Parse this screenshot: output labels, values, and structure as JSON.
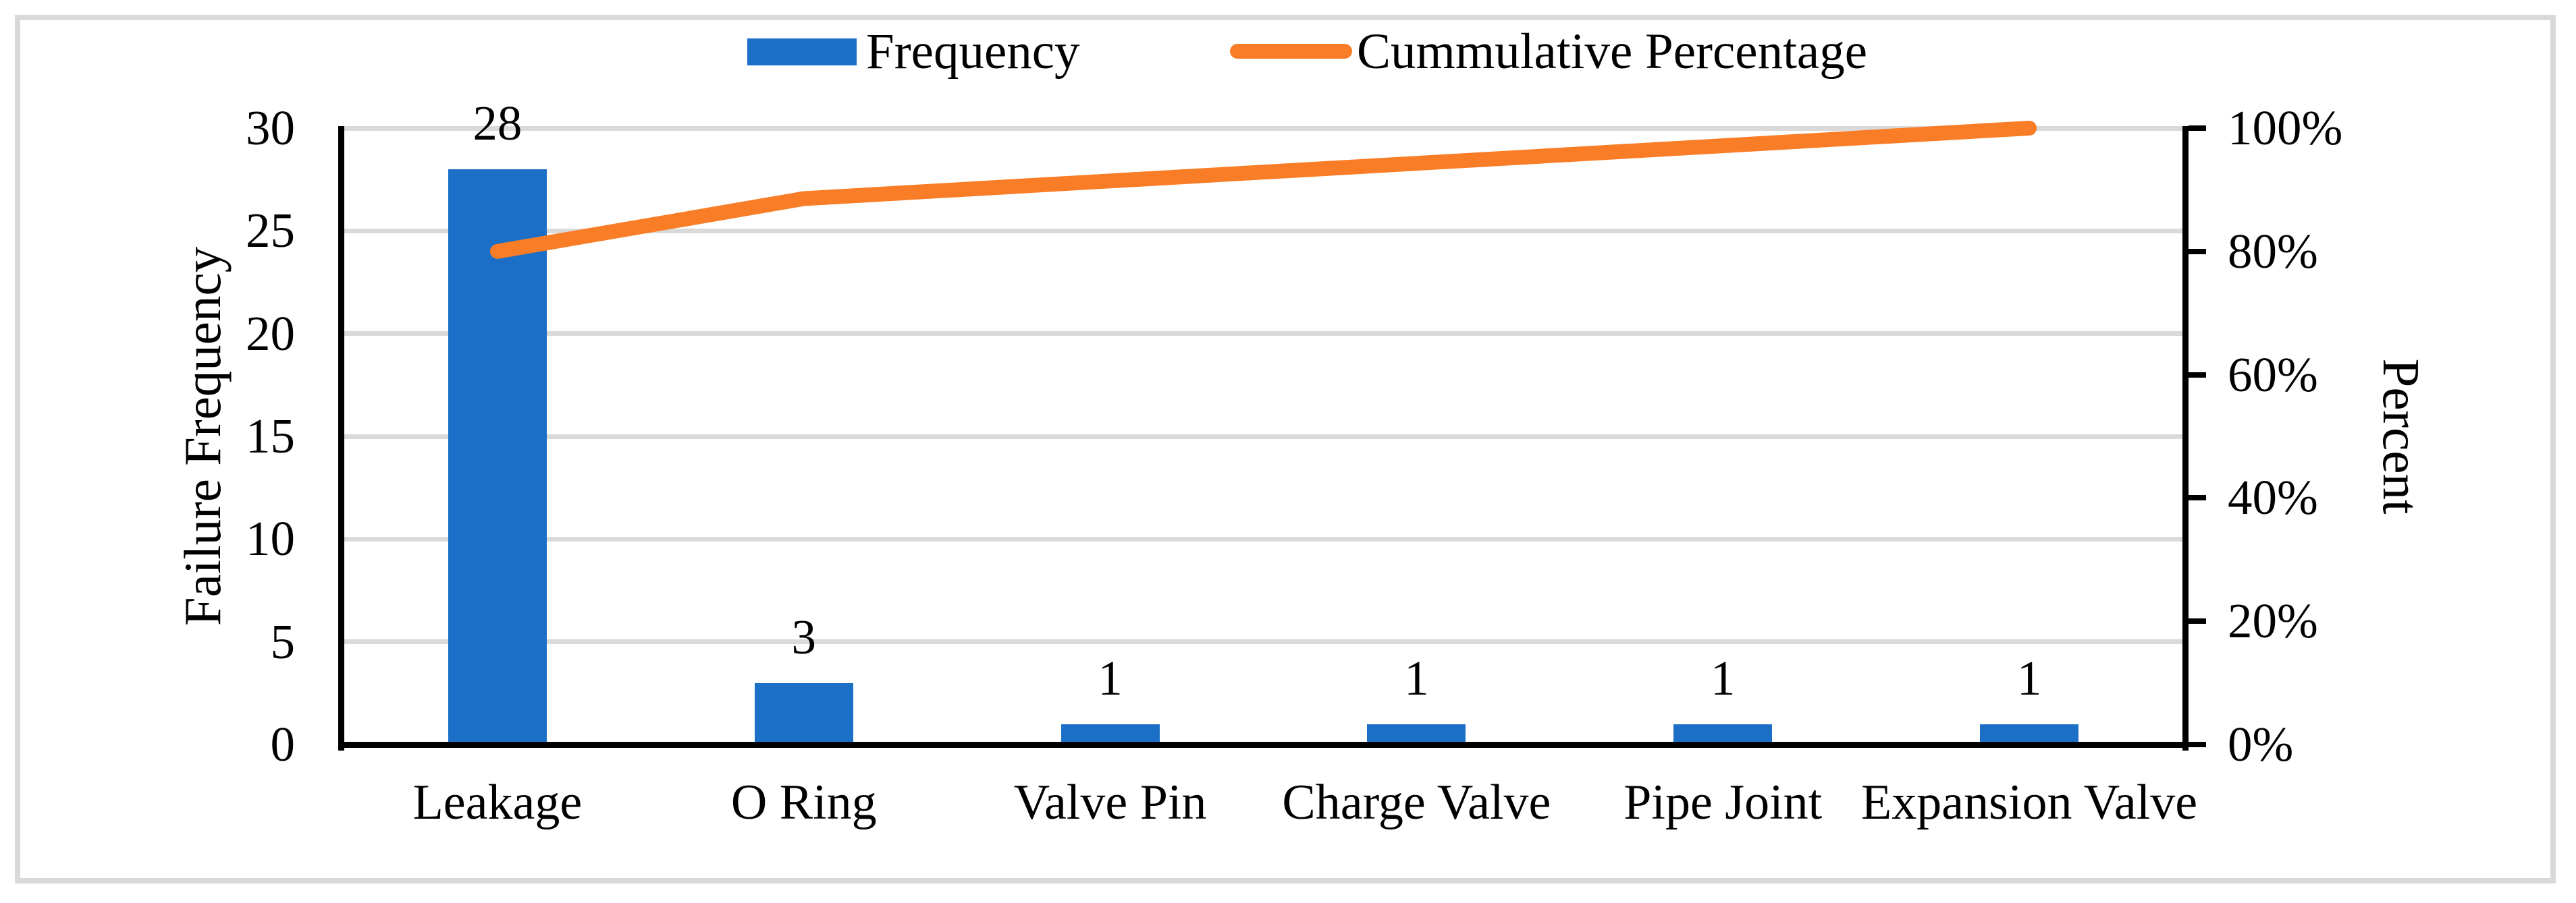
{
  "figure": {
    "description": "Pareto chart of failure causes",
    "colors": {
      "bar_blue": "#1B6FC7",
      "line_orange": "#F97D27",
      "gridline_gray": "#DADADA",
      "frame_gray": "#D9D9D9",
      "axis_black": "#000000"
    }
  },
  "chart_data": {
    "type": "bar+line pareto combo",
    "categories": [
      "Leakage",
      "O Ring",
      "Valve Pin",
      "Charge Valve",
      "Pipe Joint",
      "Expansion Valve"
    ],
    "series": [
      {
        "name": "Frequency",
        "type": "bar",
        "axis": "left",
        "color": "#1B6FC7",
        "values": [
          28,
          3,
          1,
          1,
          1,
          1
        ],
        "data_labels": [
          "28",
          "3",
          "1",
          "1",
          "1",
          "1"
        ]
      },
      {
        "name": "Cummulative Percentage",
        "type": "line",
        "axis": "right",
        "color": "#F97D27",
        "values_percent": [
          80,
          88.57,
          91.43,
          94.29,
          97.14,
          100
        ]
      }
    ],
    "left_axis": {
      "title": "Failure Frequency",
      "min": 0,
      "max": 30,
      "tick_step": 5,
      "ticks": [
        "0",
        "5",
        "10",
        "15",
        "20",
        "25",
        "30"
      ]
    },
    "right_axis": {
      "title": "Percent",
      "min": 0,
      "max": 100,
      "tick_step": 20,
      "ticks": [
        "0%",
        "20%",
        "40%",
        "60%",
        "80%",
        "100%"
      ]
    },
    "grid": "horizontal gridlines at primary-axis ticks 5 to 30",
    "legend_position": "top center"
  }
}
